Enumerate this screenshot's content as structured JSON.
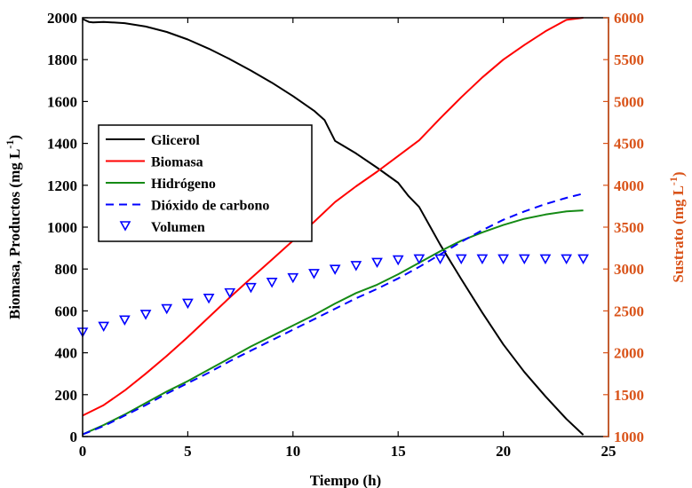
{
  "chart_data": {
    "type": "line",
    "title": "",
    "xlabel": "Tiempo (h)",
    "ylabel_left": "Biomasa, Productos (mg L",
    "ylabel_left_sup": "-1",
    "ylabel_left_suffix": ")",
    "ylabel_right": "Sustrato (mg L",
    "ylabel_right_sup": "-1",
    "ylabel_right_suffix": ")",
    "xlim": [
      0,
      25
    ],
    "ylim_left": [
      0,
      2000
    ],
    "ylim_right": [
      1000,
      6000
    ],
    "xticks": [
      "0",
      "5",
      "10",
      "15",
      "20",
      "25"
    ],
    "yticks_left": [
      "0",
      "200",
      "400",
      "600",
      "800",
      "1000",
      "1200",
      "1400",
      "1600",
      "1800",
      "2000"
    ],
    "yticks_right": [
      "1000",
      "1500",
      "2000",
      "2500",
      "3000",
      "3500",
      "4000",
      "4500",
      "5000",
      "5500",
      "6000"
    ],
    "right_axis_color": "#D95319",
    "grid": false,
    "legend_position": "center-left",
    "series": [
      {
        "name": "Glicerol",
        "axis": "right",
        "color": "#000000",
        "style": "solid",
        "x": [
          0,
          0.3,
          0.5,
          1,
          2,
          3,
          4,
          5,
          6,
          7,
          8,
          9,
          10,
          11,
          11.5,
          12,
          13,
          14,
          15,
          15.5,
          16,
          17,
          18,
          19,
          20,
          21,
          22,
          23,
          23.8
        ],
        "y": [
          5985,
          5950,
          5945,
          5950,
          5935,
          5895,
          5830,
          5740,
          5630,
          5505,
          5370,
          5225,
          5065,
          4890,
          4780,
          4530,
          4380,
          4210,
          4030,
          3870,
          3740,
          3290,
          2880,
          2480,
          2100,
          1770,
          1480,
          1210,
          1020
        ]
      },
      {
        "name": "Biomasa",
        "axis": "left",
        "color": "#FF0000",
        "style": "solid",
        "x": [
          0,
          1,
          2,
          3,
          4,
          5,
          6,
          7,
          8,
          9,
          10,
          11,
          12,
          13,
          14,
          15,
          16,
          17,
          18,
          19,
          20,
          21,
          22,
          23,
          23.8
        ],
        "y": [
          100,
          150,
          220,
          300,
          385,
          475,
          570,
          665,
          755,
          845,
          935,
          1025,
          1120,
          1195,
          1265,
          1340,
          1415,
          1520,
          1620,
          1715,
          1800,
          1870,
          1935,
          1990,
          2000
        ]
      },
      {
        "name": "Hidrógeno",
        "axis": "left",
        "color": "#158A15",
        "style": "solid",
        "x": [
          0,
          1,
          2,
          3,
          4,
          5,
          6,
          7,
          8,
          9,
          10,
          11,
          12,
          13,
          14,
          15,
          16,
          17,
          18,
          19,
          20,
          21,
          22,
          23,
          23.8
        ],
        "y": [
          10,
          55,
          105,
          160,
          215,
          265,
          320,
          375,
          430,
          480,
          530,
          580,
          635,
          685,
          725,
          775,
          830,
          885,
          935,
          975,
          1010,
          1040,
          1060,
          1075,
          1080
        ]
      },
      {
        "name": "Dióxido de carbono",
        "axis": "left",
        "color": "#0000FF",
        "style": "dashed",
        "x": [
          0,
          1,
          2,
          3,
          4,
          5,
          6,
          7,
          8,
          9,
          10,
          11,
          12,
          13,
          14,
          15,
          16,
          17,
          18,
          19,
          20,
          21,
          22,
          23,
          23.8
        ],
        "y": [
          10,
          50,
          100,
          150,
          205,
          255,
          305,
          360,
          410,
          460,
          510,
          560,
          610,
          660,
          705,
          755,
          810,
          870,
          930,
          985,
          1035,
          1075,
          1110,
          1140,
          1160
        ]
      },
      {
        "name": "Volumen",
        "axis": "left",
        "color": "#0000FF",
        "style": "markers",
        "marker": "triangle-down",
        "x": [
          0,
          1,
          2,
          3,
          4,
          5,
          6,
          7,
          8,
          9,
          10,
          11,
          12,
          13,
          14,
          15,
          16,
          17,
          18,
          19,
          20,
          21,
          22,
          23,
          23.8
        ],
        "y": [
          500,
          528,
          558,
          585,
          612,
          638,
          662,
          688,
          713,
          738,
          760,
          780,
          800,
          818,
          833,
          845,
          850,
          850,
          850,
          850,
          850,
          850,
          850,
          850,
          850
        ]
      }
    ]
  }
}
